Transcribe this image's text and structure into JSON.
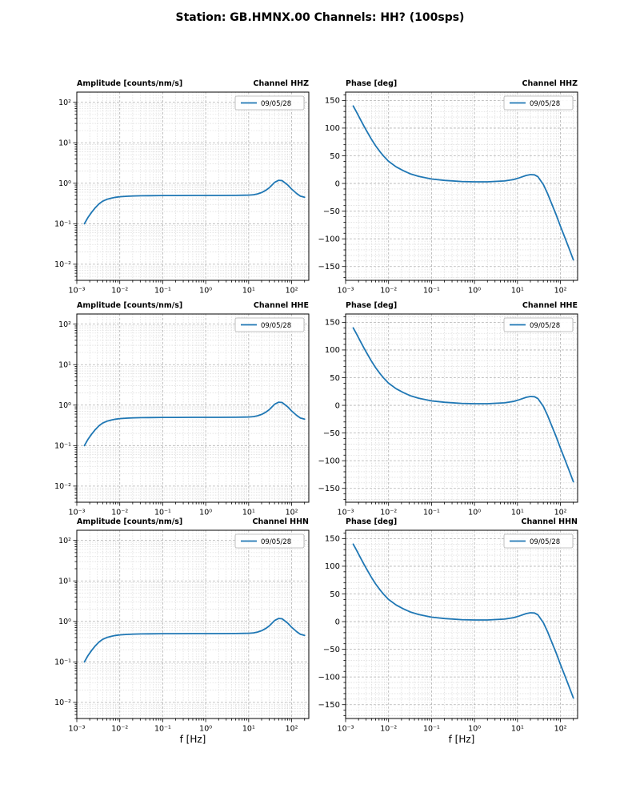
{
  "title": "Station: GB.HMNX.00 Channels: HH? (100sps)",
  "xlabel": "f [Hz]",
  "line_color": "#1f77b4",
  "legend_label": "09/05/28",
  "chart_data": [
    {
      "type": "line",
      "name": "amplitude-hhz",
      "title_left": "Amplitude [counts/nm/s]",
      "title_right": "Channel HHZ",
      "legend": "09/05/28",
      "xscale": "log",
      "yscale": "log",
      "xlim": [
        0.001,
        251
      ],
      "ylim": [
        0.004,
        178
      ],
      "xticks": [
        -3,
        -2,
        -1,
        0,
        1,
        2
      ],
      "yticks": [
        -2,
        -1,
        0,
        1,
        2
      ],
      "x": [
        0.0015,
        0.0018,
        0.0022,
        0.0027,
        0.0033,
        0.004,
        0.005,
        0.0065,
        0.008,
        0.01,
        0.015,
        0.022,
        0.033,
        0.05,
        0.1,
        0.2,
        0.5,
        1,
        2,
        5,
        8,
        10,
        13,
        16,
        20,
        25,
        30,
        40,
        50,
        60,
        80,
        100,
        130,
        160,
        200
      ],
      "y": [
        0.1,
        0.14,
        0.19,
        0.25,
        0.31,
        0.36,
        0.4,
        0.43,
        0.45,
        0.465,
        0.478,
        0.486,
        0.491,
        0.494,
        0.497,
        0.498,
        0.499,
        0.5,
        0.5,
        0.502,
        0.506,
        0.51,
        0.52,
        0.545,
        0.59,
        0.67,
        0.77,
        1.05,
        1.18,
        1.16,
        0.92,
        0.72,
        0.56,
        0.48,
        0.45
      ]
    },
    {
      "type": "line",
      "name": "phase-hhz",
      "title_left": "Phase [deg]",
      "title_right": "Channel HHZ",
      "legend": "09/05/28",
      "xscale": "log",
      "yscale": "linear",
      "xlim": [
        0.001,
        251
      ],
      "ylim": [
        -175,
        165
      ],
      "xticks": [
        -3,
        -2,
        -1,
        0,
        1,
        2
      ],
      "yticks": [
        -150,
        -100,
        -50,
        0,
        50,
        100,
        150
      ],
      "yminor": 10,
      "x": [
        0.0015,
        0.0018,
        0.0022,
        0.0027,
        0.0033,
        0.004,
        0.005,
        0.0065,
        0.008,
        0.01,
        0.015,
        0.022,
        0.033,
        0.05,
        0.1,
        0.2,
        0.5,
        1,
        2,
        5,
        8,
        10,
        13,
        16,
        20,
        25,
        30,
        40,
        50,
        60,
        80,
        100,
        130,
        160,
        200
      ],
      "y": [
        140,
        129,
        116,
        103,
        91,
        80,
        68,
        56,
        48,
        40,
        30,
        23,
        17,
        13,
        8,
        5.5,
        3.5,
        3,
        3,
        4.5,
        7,
        9,
        12,
        14.5,
        16,
        15.5,
        12,
        -2,
        -18,
        -33,
        -57,
        -77,
        -100,
        -118,
        -138
      ]
    },
    {
      "type": "line",
      "name": "amplitude-hhe",
      "title_left": "Amplitude [counts/nm/s]",
      "title_right": "Channel HHE",
      "legend": "09/05/28",
      "xscale": "log",
      "yscale": "log",
      "xlim": [
        0.001,
        251
      ],
      "ylim": [
        0.004,
        178
      ],
      "xticks": [
        -3,
        -2,
        -1,
        0,
        1,
        2
      ],
      "yticks": [
        -2,
        -1,
        0,
        1,
        2
      ],
      "x": [
        0.0015,
        0.0018,
        0.0022,
        0.0027,
        0.0033,
        0.004,
        0.005,
        0.0065,
        0.008,
        0.01,
        0.015,
        0.022,
        0.033,
        0.05,
        0.1,
        0.2,
        0.5,
        1,
        2,
        5,
        8,
        10,
        13,
        16,
        20,
        25,
        30,
        40,
        50,
        60,
        80,
        100,
        130,
        160,
        200
      ],
      "y": [
        0.1,
        0.14,
        0.19,
        0.25,
        0.31,
        0.36,
        0.4,
        0.43,
        0.45,
        0.465,
        0.478,
        0.486,
        0.491,
        0.494,
        0.497,
        0.498,
        0.499,
        0.5,
        0.5,
        0.502,
        0.506,
        0.51,
        0.52,
        0.545,
        0.59,
        0.67,
        0.77,
        1.05,
        1.18,
        1.16,
        0.92,
        0.72,
        0.56,
        0.48,
        0.45
      ]
    },
    {
      "type": "line",
      "name": "phase-hhe",
      "title_left": "Phase [deg]",
      "title_right": "Channel HHE",
      "legend": "09/05/28",
      "xscale": "log",
      "yscale": "linear",
      "xlim": [
        0.001,
        251
      ],
      "ylim": [
        -175,
        165
      ],
      "xticks": [
        -3,
        -2,
        -1,
        0,
        1,
        2
      ],
      "yticks": [
        -150,
        -100,
        -50,
        0,
        50,
        100,
        150
      ],
      "yminor": 10,
      "x": [
        0.0015,
        0.0018,
        0.0022,
        0.0027,
        0.0033,
        0.004,
        0.005,
        0.0065,
        0.008,
        0.01,
        0.015,
        0.022,
        0.033,
        0.05,
        0.1,
        0.2,
        0.5,
        1,
        2,
        5,
        8,
        10,
        13,
        16,
        20,
        25,
        30,
        40,
        50,
        60,
        80,
        100,
        130,
        160,
        200
      ],
      "y": [
        140,
        129,
        116,
        103,
        91,
        80,
        68,
        56,
        48,
        40,
        30,
        23,
        17,
        13,
        8,
        5.5,
        3.5,
        3,
        3,
        4.5,
        7,
        9,
        12,
        14.5,
        16,
        15.5,
        12,
        -2,
        -18,
        -33,
        -57,
        -77,
        -100,
        -118,
        -138
      ]
    },
    {
      "type": "line",
      "name": "amplitude-hhn",
      "title_left": "Amplitude [counts/nm/s]",
      "title_right": "Channel HHN",
      "legend": "09/05/28",
      "xscale": "log",
      "yscale": "log",
      "xlim": [
        0.001,
        251
      ],
      "ylim": [
        0.004,
        178
      ],
      "xticks": [
        -3,
        -2,
        -1,
        0,
        1,
        2
      ],
      "yticks": [
        -2,
        -1,
        0,
        1,
        2
      ],
      "x": [
        0.0015,
        0.0018,
        0.0022,
        0.0027,
        0.0033,
        0.004,
        0.005,
        0.0065,
        0.008,
        0.01,
        0.015,
        0.022,
        0.033,
        0.05,
        0.1,
        0.2,
        0.5,
        1,
        2,
        5,
        8,
        10,
        13,
        16,
        20,
        25,
        30,
        40,
        50,
        60,
        80,
        100,
        130,
        160,
        200
      ],
      "y": [
        0.1,
        0.14,
        0.19,
        0.25,
        0.31,
        0.36,
        0.4,
        0.43,
        0.45,
        0.465,
        0.478,
        0.486,
        0.491,
        0.494,
        0.497,
        0.498,
        0.499,
        0.5,
        0.5,
        0.502,
        0.506,
        0.51,
        0.52,
        0.545,
        0.59,
        0.67,
        0.77,
        1.05,
        1.18,
        1.16,
        0.92,
        0.72,
        0.56,
        0.48,
        0.45
      ]
    },
    {
      "type": "line",
      "name": "phase-hhn",
      "title_left": "Phase [deg]",
      "title_right": "Channel HHN",
      "legend": "09/05/28",
      "xscale": "log",
      "yscale": "linear",
      "xlim": [
        0.001,
        251
      ],
      "ylim": [
        -175,
        165
      ],
      "xticks": [
        -3,
        -2,
        -1,
        0,
        1,
        2
      ],
      "yticks": [
        -150,
        -100,
        -50,
        0,
        50,
        100,
        150
      ],
      "yminor": 10,
      "x": [
        0.0015,
        0.0018,
        0.0022,
        0.0027,
        0.0033,
        0.004,
        0.005,
        0.0065,
        0.008,
        0.01,
        0.015,
        0.022,
        0.033,
        0.05,
        0.1,
        0.2,
        0.5,
        1,
        2,
        5,
        8,
        10,
        13,
        16,
        20,
        25,
        30,
        40,
        50,
        60,
        80,
        100,
        130,
        160,
        200
      ],
      "y": [
        140,
        129,
        116,
        103,
        91,
        80,
        68,
        56,
        48,
        40,
        30,
        23,
        17,
        13,
        8,
        5.5,
        3.5,
        3,
        3,
        4.5,
        7,
        9,
        12,
        14.5,
        16,
        15.5,
        12,
        -2,
        -18,
        -33,
        -57,
        -77,
        -100,
        -118,
        -138
      ]
    }
  ]
}
